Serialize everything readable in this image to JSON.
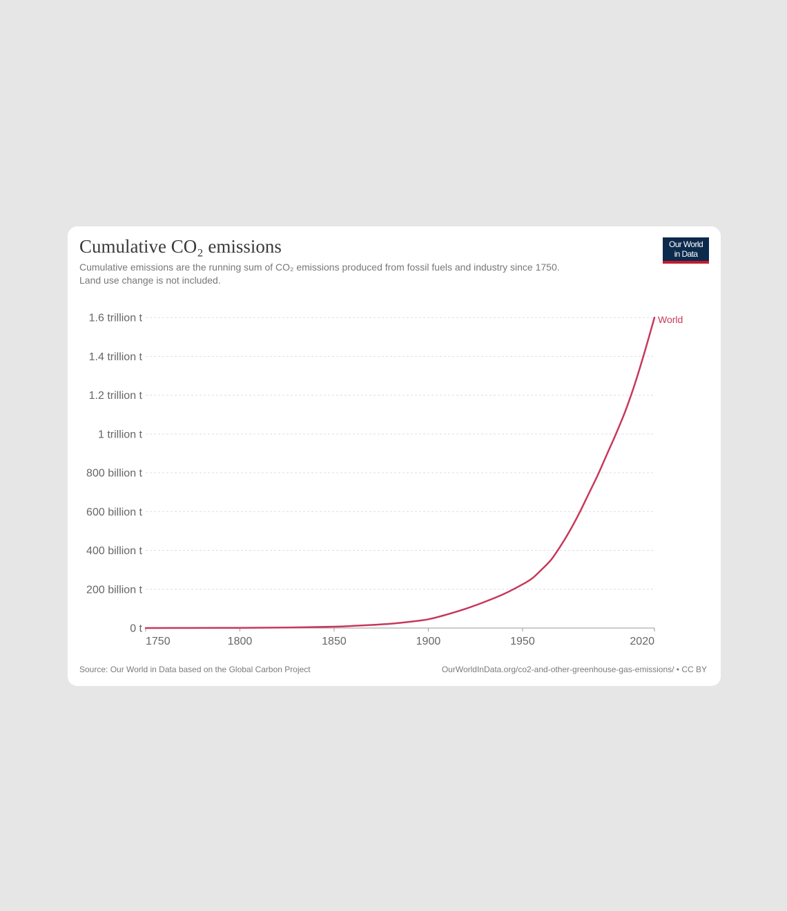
{
  "header": {
    "title": "Cumulative CO₂ emissions",
    "subtitle_line1": "Cumulative emissions are the running sum of CO₂ emissions produced from fossil fuels and industry since 1750.",
    "subtitle_line2": "Land use change is not included."
  },
  "logo": {
    "line1": "Our World",
    "line2": "in Data",
    "bg_color": "#0c2a4c",
    "accent_color": "#c41a2b"
  },
  "footer": {
    "source": "Source: Our World in Data based on the Global Carbon Project",
    "url": "OurWorldInData.org/co2-and-other-greenhouse-gas-emissions/ • CC BY"
  },
  "chart_data": {
    "type": "line",
    "title": "Cumulative CO₂ emissions",
    "xlabel": "",
    "ylabel": "",
    "xlim": [
      1750,
      2020
    ],
    "ylim": [
      0,
      1700000000000
    ],
    "grid": true,
    "legend": "inline-end-label",
    "x_ticks": [
      1750,
      1800,
      1850,
      1900,
      1950,
      2020
    ],
    "x_tick_labels": [
      "1750",
      "1800",
      "1850",
      "1900",
      "1950",
      "2020"
    ],
    "y_ticks": [
      0,
      200000000000,
      400000000000,
      600000000000,
      800000000000,
      1000000000000,
      1200000000000,
      1400000000000,
      1600000000000
    ],
    "y_tick_labels": [
      "0 t",
      "200 billion t",
      "400 billion t",
      "600 billion t",
      "800 billion t",
      "1 trillion t",
      "1.2 trillion t",
      "1.4 trillion t",
      "1.6 trillion t"
    ],
    "series": [
      {
        "name": "World",
        "color": "#c7385a",
        "x": [
          1750,
          1775,
          1800,
          1825,
          1850,
          1860,
          1870,
          1880,
          1890,
          1900,
          1910,
          1920,
          1930,
          1940,
          1950,
          1955,
          1960,
          1965,
          1970,
          1975,
          1980,
          1985,
          1990,
          1995,
          2000,
          2005,
          2010,
          2015,
          2020
        ],
        "values": [
          0,
          500000000.0,
          1000000000.0,
          3000000000.0,
          7000000000.0,
          11000000000.0,
          16000000000.0,
          22000000000.0,
          32000000000.0,
          45000000000.0,
          70000000000.0,
          100000000000.0,
          135000000000.0,
          175000000000.0,
          225000000000.0,
          255000000000.0,
          300000000000.0,
          350000000000.0,
          420000000000.0,
          500000000000.0,
          590000000000.0,
          690000000000.0,
          790000000000.0,
          900000000000.0,
          1010000000000.0,
          1130000000000.0,
          1270000000000.0,
          1430000000000.0,
          1600000000000.0
        ]
      }
    ]
  }
}
